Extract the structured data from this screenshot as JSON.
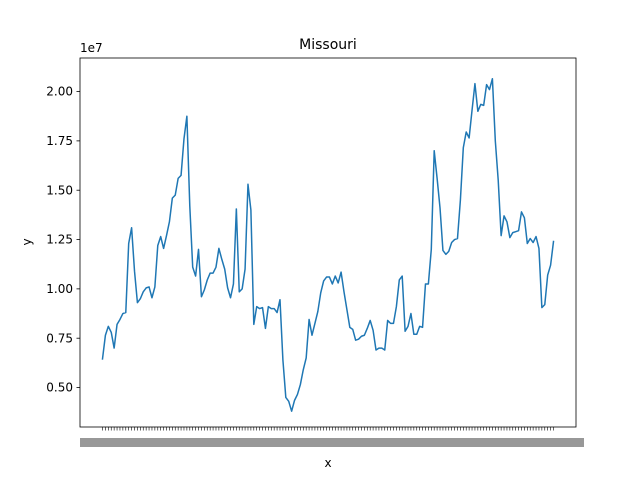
{
  "chart_data": {
    "type": "line",
    "title": "Missouri",
    "xlabel": "x",
    "ylabel": "y",
    "y_offset_text": "1e7",
    "ylim": [
      3000000,
      21700000
    ],
    "y_ticks": [
      5000000,
      7500000,
      10000000,
      12500000,
      15000000,
      17500000,
      20000000
    ],
    "y_tick_labels": [
      "0.50",
      "0.75",
      "1.00",
      "1.25",
      "1.50",
      "1.75",
      "2.00"
    ],
    "grid": false,
    "legend": "none",
    "series_color": "#1f77b4",
    "series": [
      {
        "values": [
          6450000,
          7650000,
          8100000,
          7800000,
          7000000,
          8200000,
          8450000,
          8750000,
          8800000,
          12300000,
          13100000,
          10900000,
          9300000,
          9500000,
          9850000,
          10050000,
          10100000,
          9550000,
          10100000,
          12200000,
          12650000,
          12050000,
          12700000,
          13400000,
          14600000,
          14750000,
          15600000,
          15750000,
          17600000,
          18750000,
          14200000,
          11100000,
          10650000,
          12000000,
          9600000,
          9950000,
          10450000,
          10800000,
          10800000,
          11100000,
          12050000,
          11500000,
          11000000,
          10050000,
          9550000,
          10250000,
          14050000,
          9850000,
          10000000,
          11000000,
          15300000,
          14000000,
          8200000,
          9100000,
          9000000,
          9050000,
          8000000,
          9100000,
          9000000,
          9000000,
          8800000,
          9450000,
          6400000,
          4500000,
          4300000,
          3800000,
          4350000,
          4650000,
          5150000,
          5900000,
          6500000,
          8450000,
          7650000,
          8250000,
          8850000,
          9800000,
          10400000,
          10600000,
          10600000,
          10250000,
          10650000,
          10300000,
          10850000,
          9850000,
          8950000,
          8050000,
          7950000,
          7400000,
          7450000,
          7600000,
          7650000,
          8000000,
          8400000,
          7900000,
          6900000,
          7000000,
          7000000,
          6900000,
          8400000,
          8250000,
          8250000,
          9100000,
          10450000,
          10650000,
          7850000,
          8100000,
          8750000,
          7700000,
          7700000,
          8100000,
          8050000,
          10250000,
          10250000,
          12000000,
          17000000,
          15600000,
          14100000,
          11950000,
          11750000,
          11900000,
          12350000,
          12500000,
          12550000,
          14500000,
          17150000,
          17950000,
          17650000,
          19050000,
          20400000,
          19000000,
          19350000,
          19300000,
          20350000,
          20100000,
          20650000,
          17500000,
          15500000,
          12700000,
          13700000,
          13400000,
          12600000,
          12850000,
          12900000,
          12950000,
          13900000,
          13600000,
          12300000,
          12550000,
          12350000,
          12650000,
          12050000,
          9050000,
          9200000,
          10700000,
          11200000,
          12400000
        ]
      }
    ]
  }
}
